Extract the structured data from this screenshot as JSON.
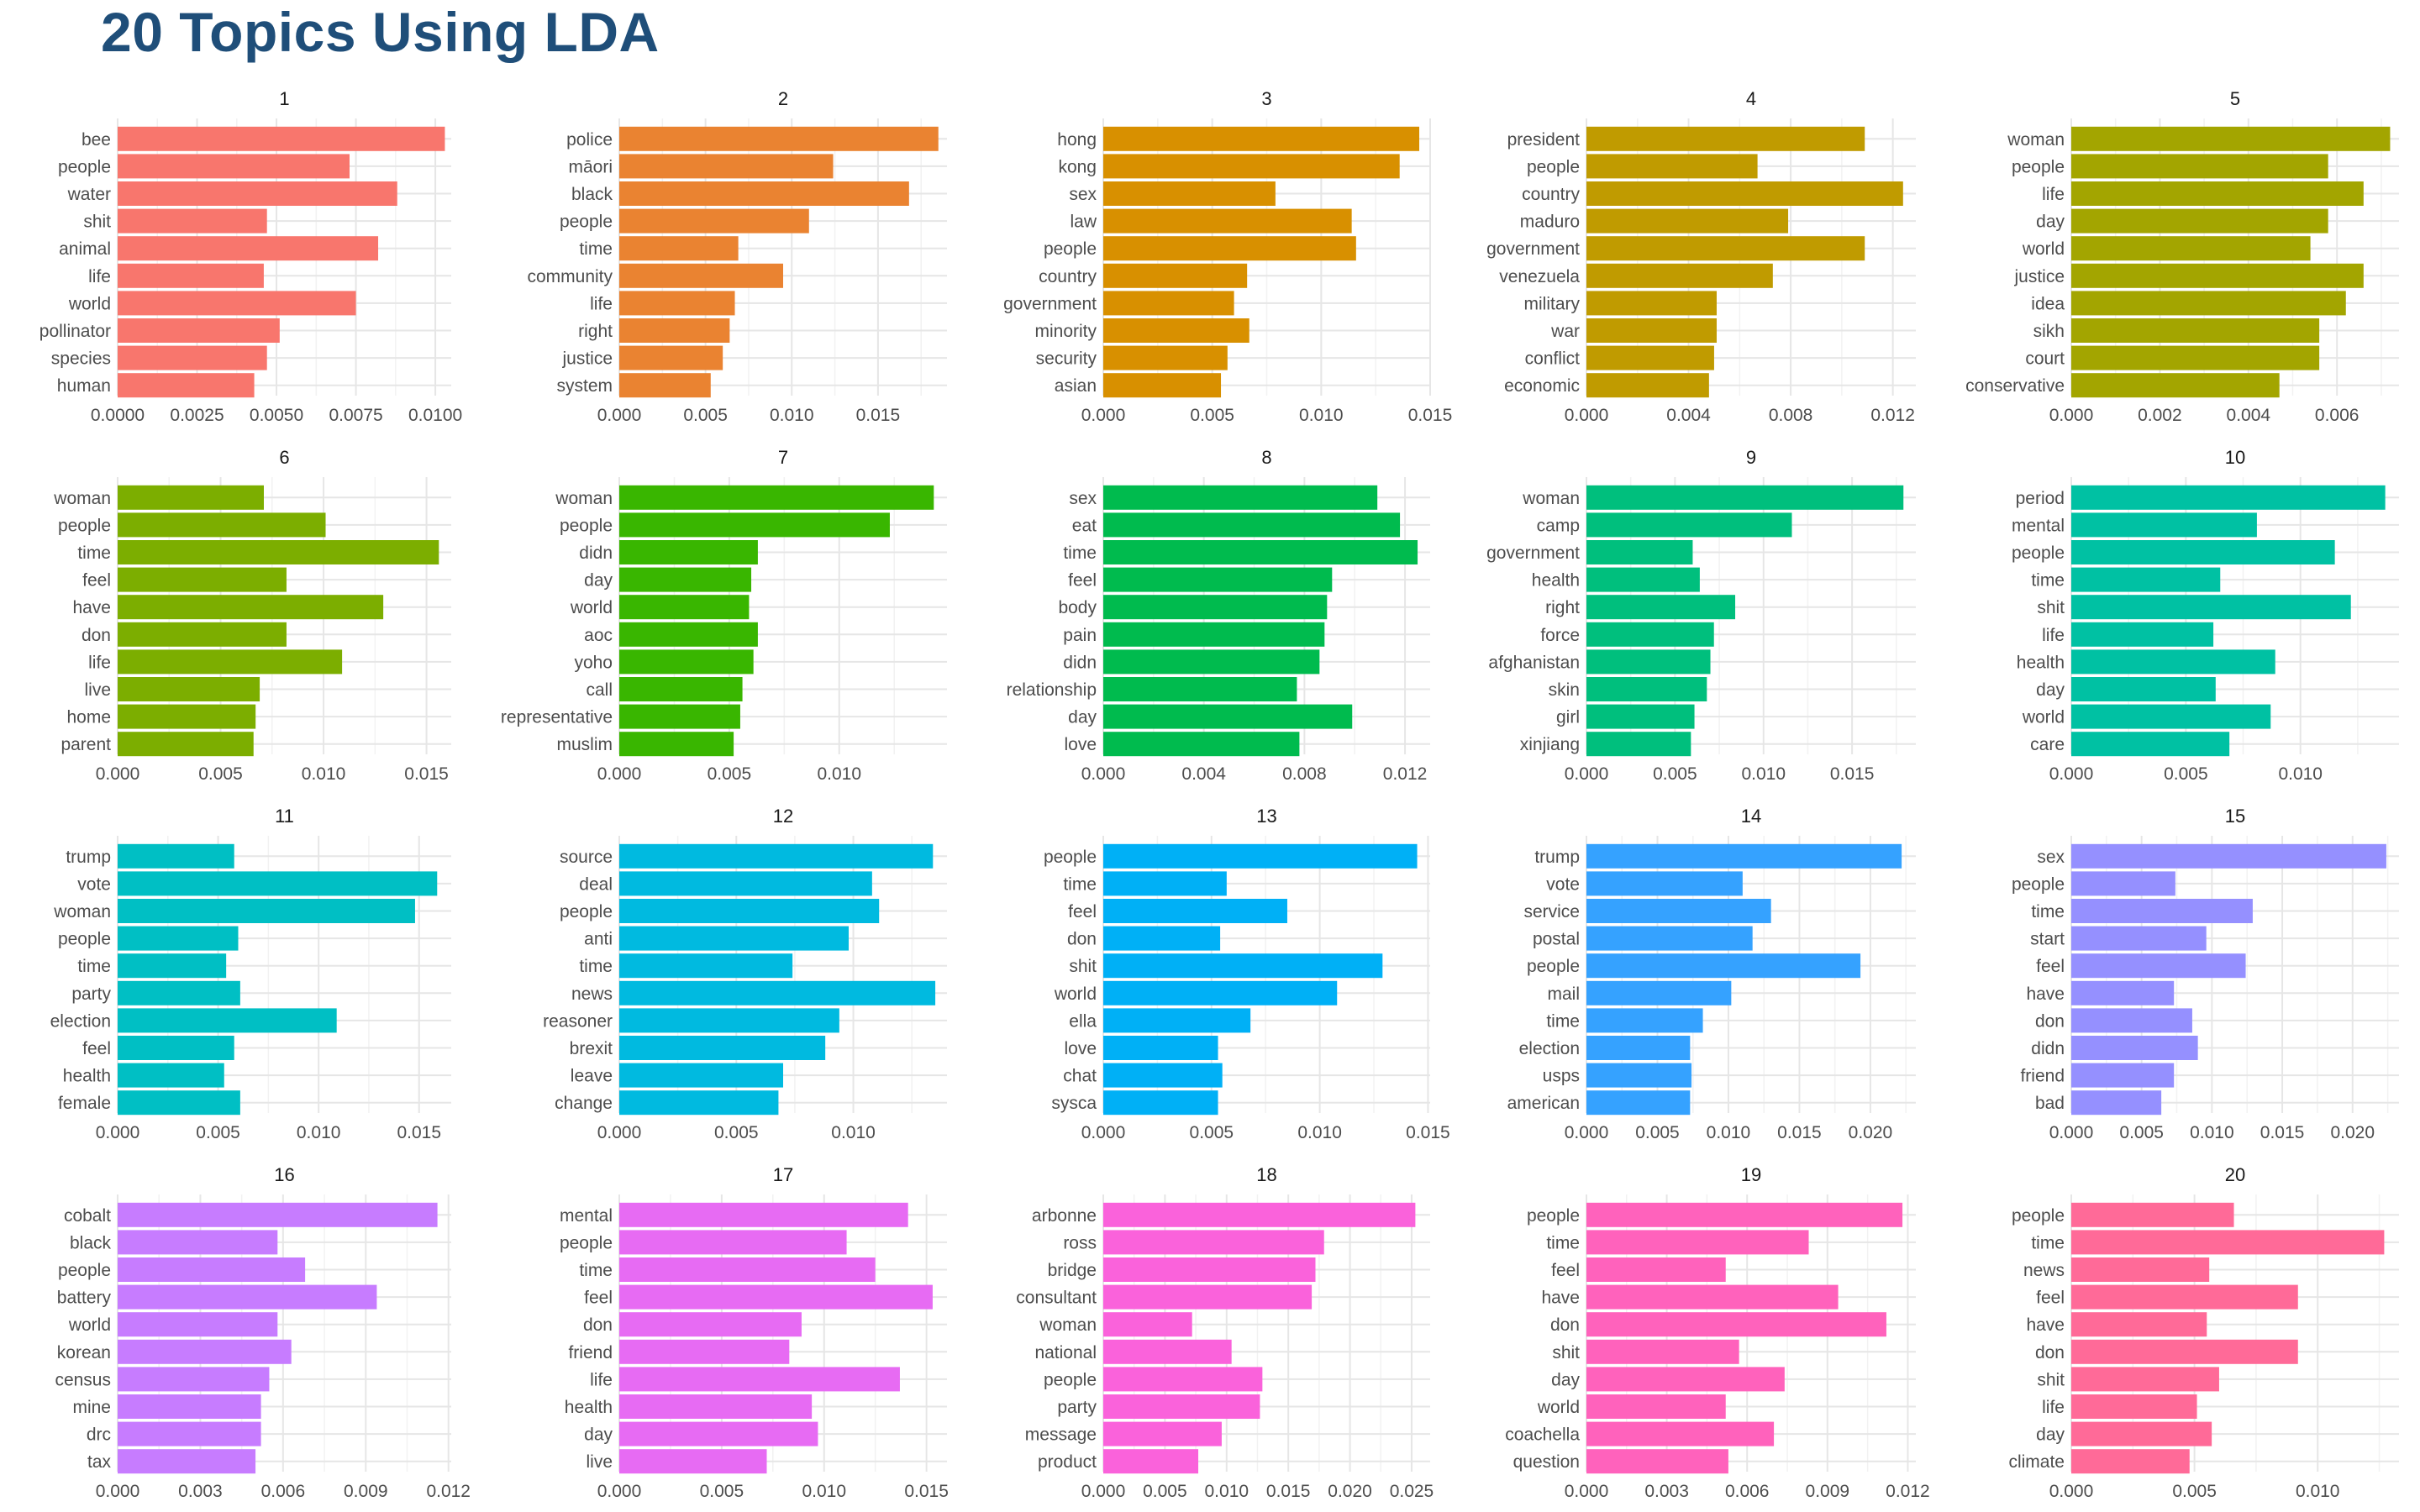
{
  "title": "20 Topics Using LDA",
  "colors": [
    "#F8766D",
    "#EA8331",
    "#D89000",
    "#C09B00",
    "#A3A500",
    "#7CAE00",
    "#39B600",
    "#00BB4E",
    "#00BF7D",
    "#00C1A3",
    "#00BFC4",
    "#00BAE0",
    "#00B0F6",
    "#35A2FF",
    "#9590FF",
    "#C77CFF",
    "#E76BF3",
    "#FA62DB",
    "#FF62BC",
    "#FF6A98"
  ],
  "chart_data": [
    {
      "type": "bar",
      "title": "1",
      "categories": [
        "bee",
        "people",
        "water",
        "shit",
        "animal",
        "life",
        "world",
        "pollinator",
        "species",
        "human"
      ],
      "values": [
        0.0103,
        0.0073,
        0.0088,
        0.0047,
        0.0082,
        0.0046,
        0.0075,
        0.0051,
        0.0047,
        0.0043
      ],
      "xlim": [
        0,
        0.0105
      ],
      "xticks": [
        "0.0000",
        "0.0025",
        "0.0050",
        "0.0075",
        "0.0100"
      ],
      "tickvals": [
        0,
        0.0025,
        0.005,
        0.0075,
        0.01
      ]
    },
    {
      "type": "bar",
      "title": "2",
      "categories": [
        "police",
        "māori",
        "black",
        "people",
        "time",
        "community",
        "life",
        "right",
        "justice",
        "system"
      ],
      "values": [
        0.0185,
        0.0124,
        0.0168,
        0.011,
        0.0069,
        0.0095,
        0.0067,
        0.0064,
        0.006,
        0.0053
      ],
      "xlim": [
        0,
        0.019
      ],
      "xticks": [
        "0.000",
        "0.005",
        "0.010",
        "0.015"
      ],
      "tickvals": [
        0,
        0.005,
        0.01,
        0.015
      ]
    },
    {
      "type": "bar",
      "title": "3",
      "categories": [
        "hong",
        "kong",
        "sex",
        "law",
        "people",
        "country",
        "government",
        "minority",
        "security",
        "asian"
      ],
      "values": [
        0.0145,
        0.0136,
        0.0079,
        0.0114,
        0.0116,
        0.0066,
        0.006,
        0.0067,
        0.0057,
        0.0054
      ],
      "xlim": [
        0,
        0.015
      ],
      "xticks": [
        "0.000",
        "0.005",
        "0.010",
        "0.015"
      ],
      "tickvals": [
        0,
        0.005,
        0.01,
        0.015
      ]
    },
    {
      "type": "bar",
      "title": "4",
      "categories": [
        "president",
        "people",
        "country",
        "maduro",
        "government",
        "venezuela",
        "military",
        "war",
        "conflict",
        "economic"
      ],
      "values": [
        0.0109,
        0.0067,
        0.0124,
        0.0079,
        0.0109,
        0.0073,
        0.0051,
        0.0051,
        0.005,
        0.0048
      ],
      "xlim": [
        0,
        0.0129
      ],
      "xticks": [
        "0.000",
        "0.004",
        "0.008",
        "0.012"
      ],
      "tickvals": [
        0,
        0.004,
        0.008,
        0.012
      ]
    },
    {
      "type": "bar",
      "title": "5",
      "categories": [
        "woman",
        "people",
        "life",
        "day",
        "world",
        "justice",
        "idea",
        "sikh",
        "court",
        "conservative"
      ],
      "values": [
        0.0072,
        0.0058,
        0.0066,
        0.0058,
        0.0054,
        0.0066,
        0.0062,
        0.0056,
        0.0056,
        0.0047
      ],
      "xlim": [
        0,
        0.0074
      ],
      "xticks": [
        "0.000",
        "0.002",
        "0.004",
        "0.006"
      ],
      "tickvals": [
        0,
        0.002,
        0.004,
        0.006
      ]
    },
    {
      "type": "bar",
      "title": "6",
      "categories": [
        "woman",
        "people",
        "time",
        "feel",
        "have",
        "don",
        "life",
        "live",
        "home",
        "parent"
      ],
      "values": [
        0.0071,
        0.0101,
        0.0156,
        0.0082,
        0.0129,
        0.0082,
        0.0109,
        0.0069,
        0.0067,
        0.0066
      ],
      "xlim": [
        0,
        0.0162
      ],
      "xticks": [
        "0.000",
        "0.005",
        "0.010",
        "0.015"
      ],
      "tickvals": [
        0,
        0.005,
        0.01,
        0.015
      ]
    },
    {
      "type": "bar",
      "title": "7",
      "categories": [
        "woman",
        "people",
        "didn",
        "day",
        "world",
        "aoc",
        "yoho",
        "call",
        "representative",
        "muslim"
      ],
      "values": [
        0.0143,
        0.0123,
        0.0063,
        0.006,
        0.0059,
        0.0063,
        0.0061,
        0.0056,
        0.0055,
        0.0052
      ],
      "xlim": [
        0,
        0.0149
      ],
      "xticks": [
        "0.000",
        "0.005",
        "0.010"
      ],
      "tickvals": [
        0,
        0.005,
        0.01
      ]
    },
    {
      "type": "bar",
      "title": "8",
      "categories": [
        "sex",
        "eat",
        "time",
        "feel",
        "body",
        "pain",
        "didn",
        "relationship",
        "day",
        "love"
      ],
      "values": [
        0.0109,
        0.0118,
        0.0125,
        0.0091,
        0.0089,
        0.0088,
        0.0086,
        0.0077,
        0.0099,
        0.0078
      ],
      "xlim": [
        0,
        0.013
      ],
      "xticks": [
        "0.000",
        "0.004",
        "0.008",
        "0.012"
      ],
      "tickvals": [
        0,
        0.004,
        0.008,
        0.012
      ]
    },
    {
      "type": "bar",
      "title": "9",
      "categories": [
        "woman",
        "camp",
        "government",
        "health",
        "right",
        "force",
        "afghanistan",
        "skin",
        "girl",
        "xinjiang"
      ],
      "values": [
        0.0179,
        0.0116,
        0.006,
        0.0064,
        0.0084,
        0.0072,
        0.007,
        0.0068,
        0.0061,
        0.0059
      ],
      "xlim": [
        0,
        0.0186
      ],
      "xticks": [
        "0.000",
        "0.005",
        "0.010",
        "0.015"
      ],
      "tickvals": [
        0,
        0.005,
        0.01,
        0.015
      ]
    },
    {
      "type": "bar",
      "title": "10",
      "categories": [
        "period",
        "mental",
        "people",
        "time",
        "shit",
        "life",
        "health",
        "day",
        "world",
        "care"
      ],
      "values": [
        0.0137,
        0.0081,
        0.0115,
        0.0065,
        0.0122,
        0.0062,
        0.0089,
        0.0063,
        0.0087,
        0.0069
      ],
      "xlim": [
        0,
        0.0143
      ],
      "xticks": [
        "0.000",
        "0.005",
        "0.010"
      ],
      "tickvals": [
        0,
        0.005,
        0.01
      ]
    },
    {
      "type": "bar",
      "title": "11",
      "categories": [
        "trump",
        "vote",
        "woman",
        "people",
        "time",
        "party",
        "election",
        "feel",
        "health",
        "female"
      ],
      "values": [
        0.0058,
        0.0159,
        0.0148,
        0.006,
        0.0054,
        0.0061,
        0.0109,
        0.0058,
        0.0053,
        0.0061
      ],
      "xlim": [
        0,
        0.0166
      ],
      "xticks": [
        "0.000",
        "0.005",
        "0.010",
        "0.015"
      ],
      "tickvals": [
        0,
        0.005,
        0.01,
        0.015
      ]
    },
    {
      "type": "bar",
      "title": "12",
      "categories": [
        "source",
        "deal",
        "people",
        "anti",
        "time",
        "news",
        "reasoner",
        "brexit",
        "leave",
        "change"
      ],
      "values": [
        0.0134,
        0.0108,
        0.0111,
        0.0098,
        0.0074,
        0.0135,
        0.0094,
        0.0088,
        0.007,
        0.0068
      ],
      "xlim": [
        0,
        0.014
      ],
      "xticks": [
        "0.000",
        "0.005",
        "0.010"
      ],
      "tickvals": [
        0,
        0.005,
        0.01
      ]
    },
    {
      "type": "bar",
      "title": "13",
      "categories": [
        "people",
        "time",
        "feel",
        "don",
        "shit",
        "world",
        "ella",
        "love",
        "chat",
        "sysca"
      ],
      "values": [
        0.0145,
        0.0057,
        0.0085,
        0.0054,
        0.0129,
        0.0108,
        0.0068,
        0.0053,
        0.0055,
        0.0053
      ],
      "xlim": [
        0,
        0.0151
      ],
      "xticks": [
        "0.000",
        "0.005",
        "0.010",
        "0.015"
      ],
      "tickvals": [
        0,
        0.005,
        0.01,
        0.015
      ]
    },
    {
      "type": "bar",
      "title": "14",
      "categories": [
        "trump",
        "vote",
        "service",
        "postal",
        "people",
        "mail",
        "time",
        "election",
        "usps",
        "american"
      ],
      "values": [
        0.0222,
        0.011,
        0.013,
        0.0117,
        0.0193,
        0.0102,
        0.0082,
        0.0073,
        0.0074,
        0.0073
      ],
      "xlim": [
        0,
        0.0232
      ],
      "xticks": [
        "0.000",
        "0.005",
        "0.010",
        "0.015",
        "0.020"
      ],
      "tickvals": [
        0,
        0.005,
        0.01,
        0.015,
        0.02
      ]
    },
    {
      "type": "bar",
      "title": "15",
      "categories": [
        "sex",
        "people",
        "time",
        "start",
        "feel",
        "have",
        "don",
        "didn",
        "friend",
        "bad"
      ],
      "values": [
        0.0224,
        0.0074,
        0.0129,
        0.0096,
        0.0124,
        0.0073,
        0.0086,
        0.009,
        0.0073,
        0.0064
      ],
      "xlim": [
        0,
        0.0233
      ],
      "xticks": [
        "0.000",
        "0.005",
        "0.010",
        "0.015",
        "0.020"
      ],
      "tickvals": [
        0,
        0.005,
        0.01,
        0.015,
        0.02
      ]
    },
    {
      "type": "bar",
      "title": "16",
      "categories": [
        "cobalt",
        "black",
        "people",
        "battery",
        "world",
        "korean",
        "census",
        "mine",
        "drc",
        "tax"
      ],
      "values": [
        0.0116,
        0.0058,
        0.0068,
        0.0094,
        0.0058,
        0.0063,
        0.0055,
        0.0052,
        0.0052,
        0.005
      ],
      "xlim": [
        0,
        0.0121
      ],
      "xticks": [
        "0.000",
        "0.003",
        "0.006",
        "0.009",
        "0.012"
      ],
      "tickvals": [
        0,
        0.003,
        0.006,
        0.009,
        0.012
      ]
    },
    {
      "type": "bar",
      "title": "17",
      "categories": [
        "mental",
        "people",
        "time",
        "feel",
        "don",
        "friend",
        "life",
        "health",
        "day",
        "live"
      ],
      "values": [
        0.0141,
        0.0111,
        0.0125,
        0.0153,
        0.0089,
        0.0083,
        0.0137,
        0.0094,
        0.0097,
        0.0072
      ],
      "xlim": [
        0,
        0.016
      ],
      "xticks": [
        "0.000",
        "0.005",
        "0.010",
        "0.015"
      ],
      "tickvals": [
        0,
        0.005,
        0.01,
        0.015
      ]
    },
    {
      "type": "bar",
      "title": "18",
      "categories": [
        "arbonne",
        "ross",
        "bridge",
        "consultant",
        "woman",
        "national",
        "people",
        "party",
        "message",
        "product"
      ],
      "values": [
        0.0253,
        0.0179,
        0.0172,
        0.0169,
        0.0072,
        0.0104,
        0.0129,
        0.0127,
        0.0096,
        0.0077
      ],
      "xlim": [
        0,
        0.0265
      ],
      "xticks": [
        "0.000",
        "0.005",
        "0.010",
        "0.015",
        "0.020",
        "0.025"
      ],
      "tickvals": [
        0,
        0.005,
        0.01,
        0.015,
        0.02,
        0.025
      ]
    },
    {
      "type": "bar",
      "title": "19",
      "categories": [
        "people",
        "time",
        "feel",
        "have",
        "don",
        "shit",
        "day",
        "world",
        "coachella",
        "question"
      ],
      "values": [
        0.0118,
        0.0083,
        0.0052,
        0.0094,
        0.0112,
        0.0057,
        0.0074,
        0.0052,
        0.007,
        0.0053
      ],
      "xlim": [
        0,
        0.0123
      ],
      "xticks": [
        "0.000",
        "0.003",
        "0.006",
        "0.009",
        "0.012"
      ],
      "tickvals": [
        0,
        0.003,
        0.006,
        0.009,
        0.012
      ]
    },
    {
      "type": "bar",
      "title": "20",
      "categories": [
        "people",
        "time",
        "news",
        "feel",
        "have",
        "don",
        "shit",
        "life",
        "day",
        "climate"
      ],
      "values": [
        0.0066,
        0.0127,
        0.0056,
        0.0092,
        0.0055,
        0.0092,
        0.006,
        0.0051,
        0.0057,
        0.0048
      ],
      "xlim": [
        0,
        0.0133
      ],
      "xticks": [
        "0.000",
        "0.005",
        "0.010"
      ],
      "tickvals": [
        0,
        0.005,
        0.01
      ]
    }
  ]
}
